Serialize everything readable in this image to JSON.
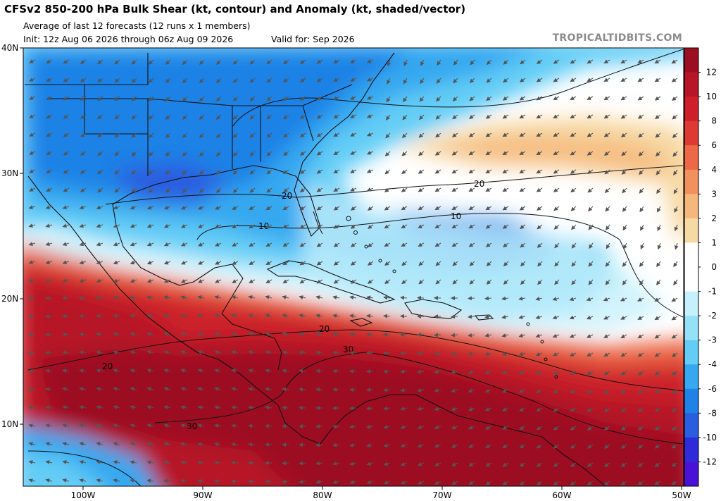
{
  "header": {
    "title": "CFSv2 850-200 hPa Bulk Shear (kt, contour) and Anomaly (kt, shaded/vector)",
    "subtitle": "Average of last 12 forecasts (12 runs x 1 members)",
    "init": "Init: 12z Aug 06 2026 through 06z Aug 09 2026",
    "valid": "Valid for: Sep 2026",
    "brand": "TROPICALTIDBITS.COM"
  },
  "axes": {
    "lat_labels": [
      "40N",
      "30N",
      "20N",
      "10N"
    ],
    "lon_labels": [
      "100W",
      "90W",
      "80W",
      "70W",
      "60W",
      "50W"
    ]
  },
  "colorbar": {
    "labels": [
      "12",
      "10",
      "8",
      "6",
      "4",
      "3",
      "2",
      "1",
      "0",
      "-1",
      "-2",
      "-3",
      "-4",
      "-6",
      "-8",
      "-10",
      "-12"
    ],
    "colors": [
      "#9c0f22",
      "#b71528",
      "#cd202b",
      "#dd3a34",
      "#ec6847",
      "#f2915d",
      "#f6b77c",
      "#f7d9a4",
      "#ffffff",
      "#ffffff",
      "#c6f0fb",
      "#95e2f8",
      "#63cdf6",
      "#36a8f0",
      "#1f82e6",
      "#2a5de0",
      "#2e2cd8",
      "#4a12d6"
    ]
  },
  "contours": {
    "labels": [
      "20",
      "10",
      "20",
      "10",
      "20",
      "30",
      "20",
      "30"
    ]
  },
  "colors": {
    "land_outline": "#111111",
    "arrow": "#555555",
    "brand": "#8c8c8c"
  }
}
